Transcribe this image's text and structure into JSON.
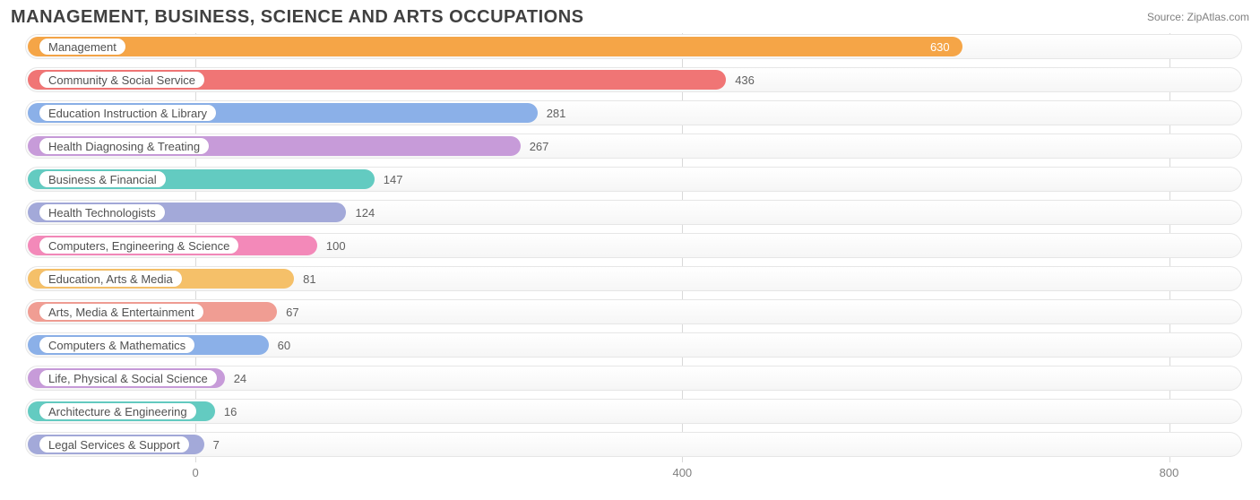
{
  "header": {
    "title": "MANAGEMENT, BUSINESS, SCIENCE AND ARTS OCCUPATIONS",
    "source_prefix": "Source: ",
    "source_name": "ZipAtlas.com"
  },
  "chart": {
    "type": "bar-horizontal",
    "background_color": "#ffffff",
    "track_border_color": "#e6e6e6",
    "track_bg_top": "#ffffff",
    "track_bg_bottom": "#f6f6f6",
    "grid_color": "#d9d9d9",
    "label_fontsize": 13,
    "title_fontsize": 20,
    "axis_fontsize": 13,
    "bar_radius": 12,
    "xmin": -140,
    "xmax": 860,
    "ticks": [
      0,
      400,
      800
    ],
    "series": [
      {
        "label": "Management",
        "value": 630,
        "color": "#f5a547",
        "value_inside": true
      },
      {
        "label": "Community & Social Service",
        "value": 436,
        "color": "#f07575"
      },
      {
        "label": "Education Instruction & Library",
        "value": 281,
        "color": "#8bb0e8"
      },
      {
        "label": "Health Diagnosing & Treating",
        "value": 267,
        "color": "#c79bd9"
      },
      {
        "label": "Business & Financial",
        "value": 147,
        "color": "#63cbc1"
      },
      {
        "label": "Health Technologists",
        "value": 124,
        "color": "#a3a9d9"
      },
      {
        "label": "Computers, Engineering & Science",
        "value": 100,
        "color": "#f389b9"
      },
      {
        "label": "Education, Arts & Media",
        "value": 81,
        "color": "#f5c069"
      },
      {
        "label": "Arts, Media & Entertainment",
        "value": 67,
        "color": "#f09d93"
      },
      {
        "label": "Computers & Mathematics",
        "value": 60,
        "color": "#8bb0e8"
      },
      {
        "label": "Life, Physical & Social Science",
        "value": 24,
        "color": "#c79bd9"
      },
      {
        "label": "Architecture & Engineering",
        "value": 16,
        "color": "#63cbc1"
      },
      {
        "label": "Legal Services & Support",
        "value": 7,
        "color": "#a3a9d9"
      }
    ]
  }
}
